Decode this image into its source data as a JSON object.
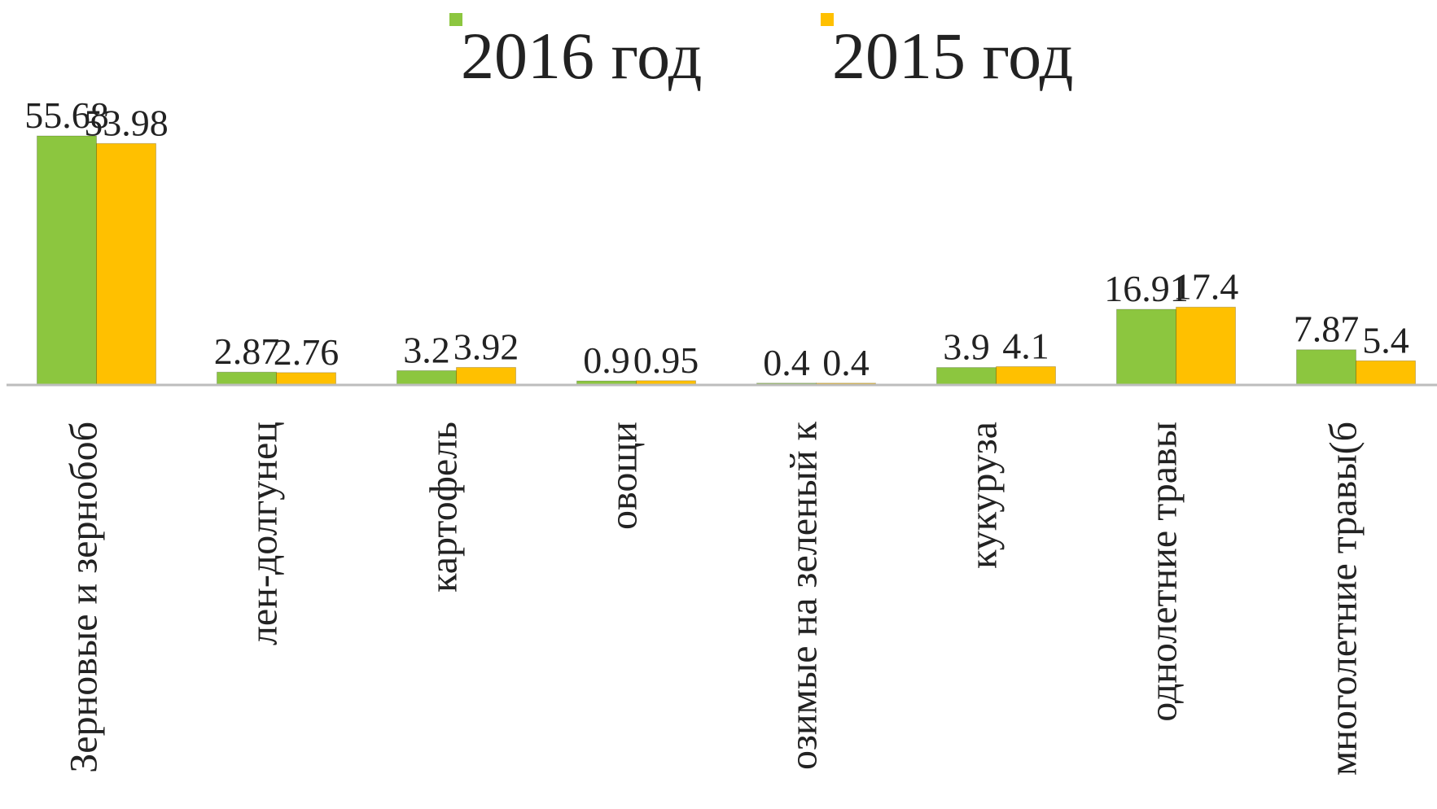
{
  "chart_data": {
    "type": "bar",
    "categories": [
      "Зерновые и зернобоб",
      "лен-долгунец",
      "картофель",
      "овощи",
      "озимые на зеленый к",
      "кукуруза",
      "однолетние травы",
      "многолетние травы(б"
    ],
    "series": [
      {
        "name": "2016 год",
        "color": "#8cc63f",
        "values": [
          55.68,
          2.87,
          3.2,
          0.9,
          0.4,
          3.9,
          16.91,
          7.87
        ]
      },
      {
        "name": "2015 год",
        "color": "#ffc000",
        "values": [
          53.98,
          2.76,
          3.92,
          0.95,
          0.4,
          4.1,
          17.4,
          5.4
        ]
      }
    ],
    "legend": "top"
  }
}
